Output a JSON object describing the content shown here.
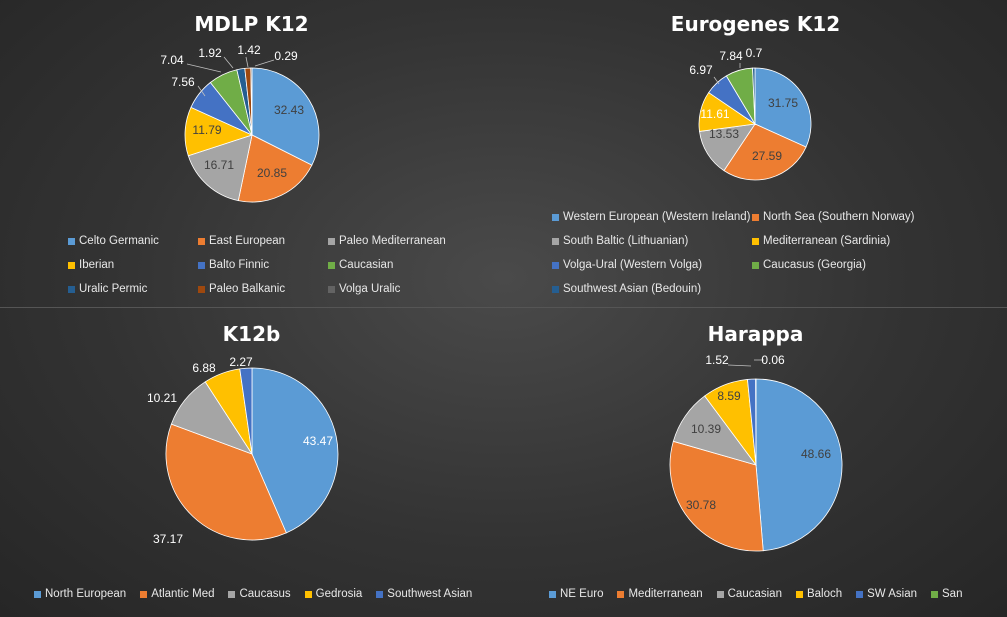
{
  "chart_data": [
    {
      "type": "pie",
      "title": "MDLP K12",
      "series": [
        {
          "values": [
            32.43,
            20.85,
            16.71,
            11.79,
            7.56,
            7.04,
            1.92,
            1.42,
            0.29
          ]
        }
      ],
      "categories": [
        "Celto Germanic",
        "East European",
        "Paleo Mediterranean",
        "Iberian",
        "Balto Finnic",
        "Caucasian",
        "Uralic Permic",
        "Paleo Balkanic",
        "Volga Uralic"
      ],
      "labels": [
        "32.43",
        "20.85",
        "16.71",
        "11.79",
        "7.56",
        "7.04",
        "1.92",
        "1.42",
        "0.29"
      ],
      "colors": [
        "#5B9BD5",
        "#ED7D31",
        "#A5A5A5",
        "#FFC000",
        "#4472C4",
        "#70AD47",
        "#255E91",
        "#9E480E",
        "#636363"
      ],
      "legend_placement": "bottom"
    },
    {
      "type": "pie",
      "title": "Eurogenes K12",
      "series": [
        {
          "values": [
            31.75,
            27.59,
            13.53,
            11.61,
            6.97,
            7.84,
            0.7
          ]
        }
      ],
      "categories": [
        "Western European (Western Ireland)",
        "North Sea (Southern Norway)",
        "South Baltic (Lithuanian)",
        "Mediterranean (Sardinia)",
        "Volga-Ural (Western Volga)",
        "Caucasus (Georgia)",
        "Southwest Asian (Bedouin)"
      ],
      "labels": [
        "31.75",
        "27.59",
        "13.53",
        "11.61",
        "6.97",
        "7.84",
        "0.7"
      ],
      "colors": [
        "#5B9BD5",
        "#ED7D31",
        "#A5A5A5",
        "#FFC000",
        "#4472C4",
        "#70AD47",
        "#255E91"
      ],
      "legend_placement": "bottom"
    },
    {
      "type": "pie",
      "title": "K12b",
      "series": [
        {
          "values": [
            43.47,
            37.17,
            10.21,
            6.88,
            2.27
          ]
        }
      ],
      "categories": [
        "North European",
        "Atlantic Med",
        "Caucasus",
        "Gedrosia",
        "Southwest Asian"
      ],
      "labels": [
        "43.47",
        "37.17",
        "10.21",
        "6.88",
        "2.27"
      ],
      "colors": [
        "#5B9BD5",
        "#ED7D31",
        "#A5A5A5",
        "#FFC000",
        "#4472C4"
      ],
      "legend_placement": "bottom"
    },
    {
      "type": "pie",
      "title": "Harappa",
      "series": [
        {
          "values": [
            48.66,
            30.78,
            10.39,
            8.59,
            1.52,
            0.06
          ]
        }
      ],
      "categories": [
        "NE Euro",
        "Mediterranean",
        "Caucasian",
        "Baloch",
        "SW Asian",
        "San"
      ],
      "labels": [
        "48.66",
        "30.78",
        "10.39",
        "8.59",
        "1.52",
        "0.06"
      ],
      "colors": [
        "#5B9BD5",
        "#ED7D31",
        "#A5A5A5",
        "#FFC000",
        "#4472C4",
        "#70AD47"
      ],
      "legend_placement": "bottom"
    }
  ]
}
